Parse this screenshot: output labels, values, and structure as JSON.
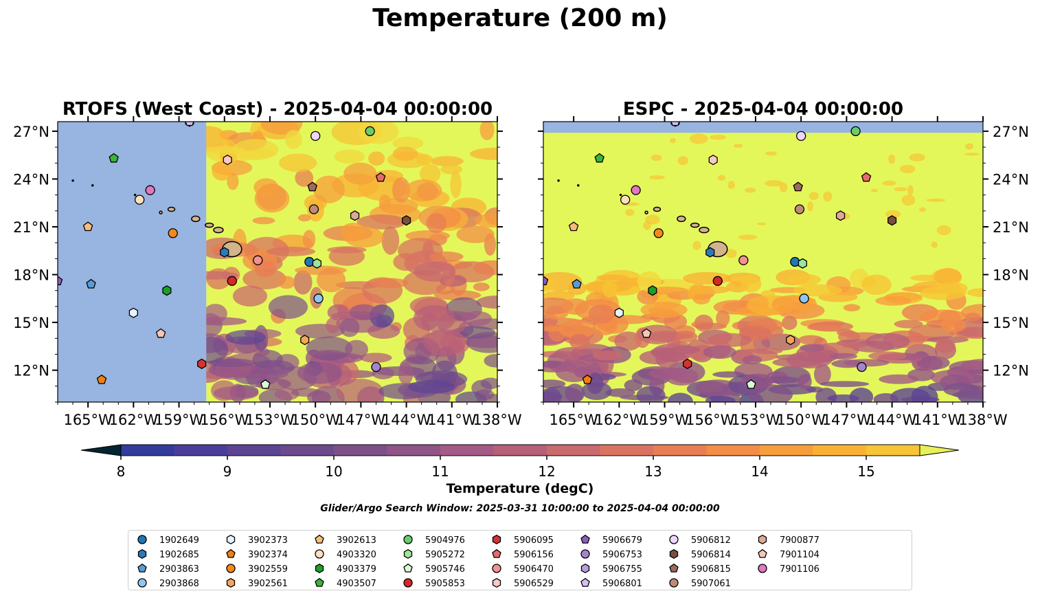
{
  "figure": {
    "title": "Temperature (200 m)",
    "search_window": "Glider/Argo Search Window: 2025-03-31 10:00:00 to 2025-04-04 00:00:00"
  },
  "colors": {
    "ocean_nodata": "#98b4e0",
    "land": "#d2b48c",
    "warm_cap": "#e4f75a",
    "colormap": [
      "#042333",
      "#0c2e5c",
      "#203590",
      "#333c9b",
      "#4a3e9a",
      "#5c4493",
      "#6d4a8d",
      "#7e508a",
      "#915487",
      "#a35a85",
      "#b66079",
      "#c96a6e",
      "#da7360",
      "#e87e53",
      "#f38d47",
      "#f79e3c",
      "#f9b134",
      "#f6c435",
      "#f2d83e",
      "#e8f058"
    ]
  },
  "chart_data": {
    "type": "map",
    "panels": [
      {
        "title": "RTOFS (West Coast) - 2025-04-04 00:00:00",
        "model_domain_west_edge_lon": -157.2,
        "profile_points_on_map": 30
      },
      {
        "title": "ESPC - 2025-04-04 00:00:00",
        "model_domain_west_edge_lon": -167,
        "profile_points_on_map": 30
      }
    ],
    "lon_range": [
      -167,
      -138
    ],
    "lat_range": [
      10,
      27.6
    ],
    "x_ticks": [
      "165°W",
      "162°W",
      "159°W",
      "156°W",
      "153°W",
      "150°W",
      "147°W",
      "144°W",
      "141°W",
      "138°W"
    ],
    "x_tick_values": [
      -165,
      -162,
      -159,
      -156,
      -153,
      -150,
      -147,
      -144,
      -141,
      -138
    ],
    "y_ticks": [
      "27°N",
      "24°N",
      "21°N",
      "18°N",
      "15°N",
      "12°N"
    ],
    "y_tick_values": [
      27,
      24,
      21,
      18,
      15,
      12
    ],
    "colorbar": {
      "label": "Temperature (degC)",
      "min": 7.5,
      "max": 15.5,
      "step": 0.5,
      "ticks": [
        "8",
        "9",
        "10",
        "11",
        "12",
        "13",
        "14",
        "15"
      ],
      "tick_values": [
        8,
        9,
        10,
        11,
        12,
        13,
        14,
        15
      ],
      "extend": "both"
    },
    "series": [
      {
        "name": "1902649",
        "marker": "circle",
        "color": "#1f77b4",
        "lon": -150.4,
        "lat": 18.8
      },
      {
        "name": "1902685",
        "marker": "hexagon",
        "color": "#2b7bba",
        "lon": -156.0,
        "lat": 19.4
      },
      {
        "name": "2903863",
        "marker": "pentagon",
        "color": "#5a9bd5",
        "lon": -164.8,
        "lat": 17.4
      },
      {
        "name": "2903868",
        "marker": "circle",
        "color": "#8ec6f0",
        "lon": -149.8,
        "lat": 16.5
      },
      {
        "name": "3902373",
        "marker": "hexagon",
        "color": "#e6f2ff",
        "lon": -162.0,
        "lat": 15.6
      },
      {
        "name": "3902374",
        "marker": "pentagon",
        "color": "#f07f14",
        "lon": -164.1,
        "lat": 11.4
      },
      {
        "name": "3902559",
        "marker": "circle",
        "color": "#f5891a",
        "lon": -159.4,
        "lat": 20.6
      },
      {
        "name": "3902561",
        "marker": "hexagon",
        "color": "#f5a55a",
        "lon": -150.7,
        "lat": 13.9
      },
      {
        "name": "3902613",
        "marker": "pentagon",
        "color": "#f6bd7a",
        "lon": -165.0,
        "lat": 21.0
      },
      {
        "name": "4903320",
        "marker": "circle",
        "color": "#fde0bd",
        "lon": -161.6,
        "lat": 22.7
      },
      {
        "name": "4903379",
        "marker": "hexagon",
        "color": "#1e9e2a",
        "lon": -159.8,
        "lat": 17.0
      },
      {
        "name": "4903507",
        "marker": "pentagon",
        "color": "#38b53a",
        "lon": -163.3,
        "lat": 25.3
      },
      {
        "name": "5904976",
        "marker": "circle",
        "color": "#6ccc6c",
        "lon": -146.4,
        "lat": 27.0
      },
      {
        "name": "5905272",
        "marker": "hexagon",
        "color": "#9ce59c",
        "lon": -149.9,
        "lat": 18.7
      },
      {
        "name": "5905746",
        "marker": "pentagon",
        "color": "#d6fbd6",
        "lon": -153.3,
        "lat": 11.1
      },
      {
        "name": "5905853",
        "marker": "circle",
        "color": "#d62728",
        "lon": -155.5,
        "lat": 17.6
      },
      {
        "name": "5906095",
        "marker": "hexagon",
        "color": "#d63232",
        "lon": -157.5,
        "lat": 12.4
      },
      {
        "name": "5906156",
        "marker": "pentagon",
        "color": "#e56a6a",
        "lon": -145.7,
        "lat": 24.1
      },
      {
        "name": "5906470",
        "marker": "circle",
        "color": "#f29292",
        "lon": -153.8,
        "lat": 18.9
      },
      {
        "name": "5906529",
        "marker": "hexagon",
        "color": "#fac7c7",
        "lon": -155.8,
        "lat": 25.2
      },
      {
        "name": "5906679",
        "marker": "pentagon",
        "color": "#8c5fbe",
        "lon": -167.0,
        "lat": 17.6
      },
      {
        "name": "5906753",
        "marker": "circle",
        "color": "#a683cf",
        "lon": -146.0,
        "lat": 12.2
      },
      {
        "name": "5906755",
        "marker": "hexagon",
        "color": "#ba9de0",
        "lon": -158.3,
        "lat": 27.6
      },
      {
        "name": "5906801",
        "marker": "pentagon",
        "color": "#d4bff0",
        "lon": -158.3,
        "lat": 27.6
      },
      {
        "name": "5906812",
        "marker": "circle",
        "color": "#efd6ff",
        "lon": -150.0,
        "lat": 26.7
      },
      {
        "name": "5906814",
        "marker": "hexagon",
        "color": "#7b4f3e",
        "lon": -144.0,
        "lat": 21.4
      },
      {
        "name": "5906815",
        "marker": "pentagon",
        "color": "#9c6b5a",
        "lon": -150.2,
        "lat": 23.5
      },
      {
        "name": "5907061",
        "marker": "circle",
        "color": "#c08a7a",
        "lon": -150.1,
        "lat": 22.1
      },
      {
        "name": "7900877",
        "marker": "hexagon",
        "color": "#ddaa98",
        "lon": -147.4,
        "lat": 21.7
      },
      {
        "name": "7901104",
        "marker": "pentagon",
        "color": "#f4c7b8",
        "lon": -160.2,
        "lat": 14.3
      },
      {
        "name": "7901106",
        "marker": "circle",
        "color": "#e377c2",
        "lon": -160.9,
        "lat": 23.3
      }
    ],
    "legend_columns": 9,
    "legend_placement": "bottom"
  }
}
